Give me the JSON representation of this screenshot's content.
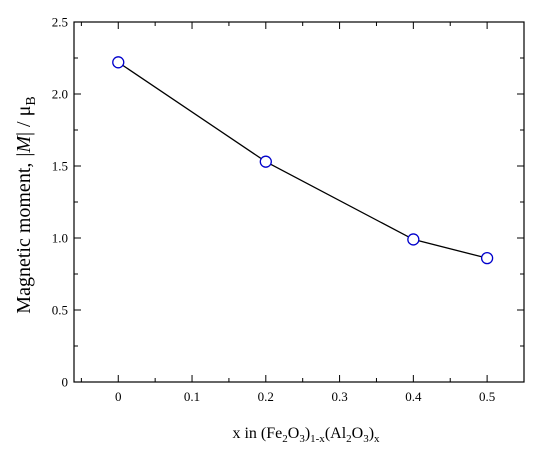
{
  "chart_data": {
    "type": "line",
    "title": "",
    "xlabel": {
      "text": "x in (Fe",
      "parts": [
        "2",
        "O",
        "3",
        ")",
        "1-x",
        "(Al",
        "2",
        "O",
        "3",
        ")",
        "x"
      ]
    },
    "ylabel": {
      "prefix": "Magnetic moment,",
      "bar_left": "|",
      "symbol": "M",
      "bar_right": "|",
      "slash": "/",
      "mu": "μ",
      "mu_sub": "B"
    },
    "xlim": [
      -0.06,
      0.55
    ],
    "ylim": [
      0,
      2.5
    ],
    "x_ticks": [
      0,
      0.1,
      0.2,
      0.3,
      0.4,
      0.5
    ],
    "x_tick_labels": [
      "0",
      "0.1",
      "0.2",
      "0.3",
      "0.4",
      "0.5"
    ],
    "y_ticks": [
      0,
      0.5,
      1.0,
      1.5,
      2.0,
      2.5
    ],
    "y_tick_labels": [
      "0",
      "0.5",
      "1.0",
      "1.5",
      "2.0",
      "2.5"
    ],
    "series": [
      {
        "x": [
          0,
          0.2,
          0.4,
          0.5
        ],
        "y": [
          2.22,
          1.53,
          0.99,
          0.86
        ]
      }
    ],
    "marker": "open-circle",
    "marker_color": "#0000cc",
    "line_color": "#000000",
    "grid": false,
    "legend": "none"
  }
}
